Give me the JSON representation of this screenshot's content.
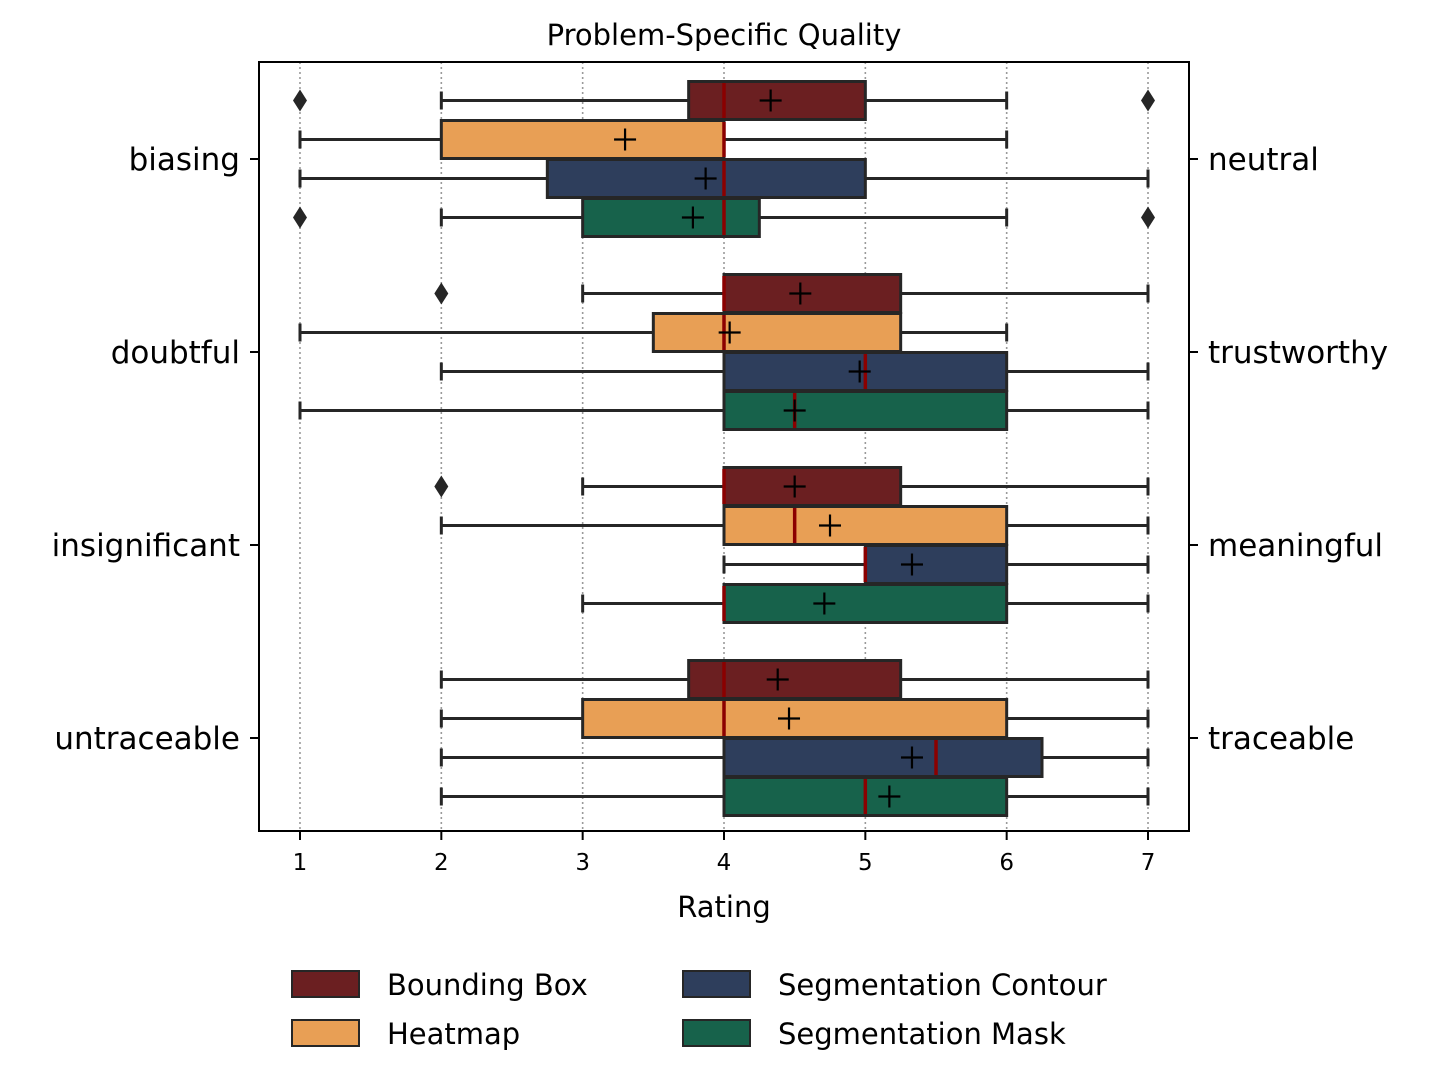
{
  "chart_data": {
    "type": "boxplot",
    "orientation": "horizontal",
    "title": "Problem-Specific Quality",
    "xlabel": "Rating",
    "xlim": [
      0.71,
      7.29
    ],
    "xticks": [
      1,
      2,
      3,
      4,
      5,
      6,
      7
    ],
    "grid": "vertical dotted",
    "categories": [
      {
        "left": "biasing",
        "right": "neutral"
      },
      {
        "left": "doubtful",
        "right": "trustworthy"
      },
      {
        "left": "insignificant",
        "right": "meaningful"
      },
      {
        "left": "untraceable",
        "right": "traceable"
      }
    ],
    "series": [
      {
        "name": "Bounding Box",
        "color": "#6b1f21"
      },
      {
        "name": "Heatmap",
        "color": "#e89f55"
      },
      {
        "name": "Segmentation Contour",
        "color": "#2e3e5c"
      },
      {
        "name": "Segmentation Mask",
        "color": "#17624b"
      }
    ],
    "boxes": [
      [
        {
          "whisker_low": 2,
          "q1": 3.75,
          "median": 4,
          "q3": 5,
          "whisker_high": 6,
          "mean": 4.33,
          "outliers": [
            1,
            7
          ]
        },
        {
          "whisker_low": 1,
          "q1": 2,
          "median": 4,
          "q3": 4,
          "whisker_high": 6,
          "mean": 3.3,
          "outliers": []
        },
        {
          "whisker_low": 1,
          "q1": 2.75,
          "median": 4,
          "q3": 5,
          "whisker_high": 7,
          "mean": 3.87,
          "outliers": []
        },
        {
          "whisker_low": 2,
          "q1": 3,
          "median": 4,
          "q3": 4.25,
          "whisker_high": 6,
          "mean": 3.78,
          "outliers": [
            1,
            7
          ]
        }
      ],
      [
        {
          "whisker_low": 3,
          "q1": 4,
          "median": 4,
          "q3": 5.25,
          "whisker_high": 7,
          "mean": 4.54,
          "outliers": [
            2
          ]
        },
        {
          "whisker_low": 1,
          "q1": 3.5,
          "median": 4,
          "q3": 5.25,
          "whisker_high": 6,
          "mean": 4.04,
          "outliers": []
        },
        {
          "whisker_low": 2,
          "q1": 4,
          "median": 5,
          "q3": 6,
          "whisker_high": 7,
          "mean": 4.96,
          "outliers": []
        },
        {
          "whisker_low": 1,
          "q1": 4,
          "median": 4.5,
          "q3": 6,
          "whisker_high": 7,
          "mean": 4.5,
          "outliers": []
        }
      ],
      [
        {
          "whisker_low": 3,
          "q1": 4,
          "median": 4,
          "q3": 5.25,
          "whisker_high": 7,
          "mean": 4.5,
          "outliers": [
            2
          ]
        },
        {
          "whisker_low": 2,
          "q1": 4,
          "median": 4.5,
          "q3": 6,
          "whisker_high": 7,
          "mean": 4.75,
          "outliers": []
        },
        {
          "whisker_low": 4,
          "q1": 5,
          "median": 5,
          "q3": 6,
          "whisker_high": 7,
          "mean": 5.33,
          "outliers": []
        },
        {
          "whisker_low": 3,
          "q1": 4,
          "median": 4,
          "q3": 6,
          "whisker_high": 7,
          "mean": 4.71,
          "outliers": []
        }
      ],
      [
        {
          "whisker_low": 2,
          "q1": 3.75,
          "median": 4,
          "q3": 5.25,
          "whisker_high": 7,
          "mean": 4.38,
          "outliers": []
        },
        {
          "whisker_low": 2,
          "q1": 3,
          "median": 4,
          "q3": 6,
          "whisker_high": 7,
          "mean": 4.46,
          "outliers": []
        },
        {
          "whisker_low": 2,
          "q1": 4,
          "median": 5.5,
          "q3": 6.25,
          "whisker_high": 7,
          "mean": 5.33,
          "outliers": []
        },
        {
          "whisker_low": 2,
          "q1": 4,
          "median": 5,
          "q3": 6,
          "whisker_high": 7,
          "mean": 5.17,
          "outliers": []
        }
      ]
    ],
    "median_color": "#8b0000",
    "mean_marker": "+",
    "legend_placement": "bottom-center"
  }
}
